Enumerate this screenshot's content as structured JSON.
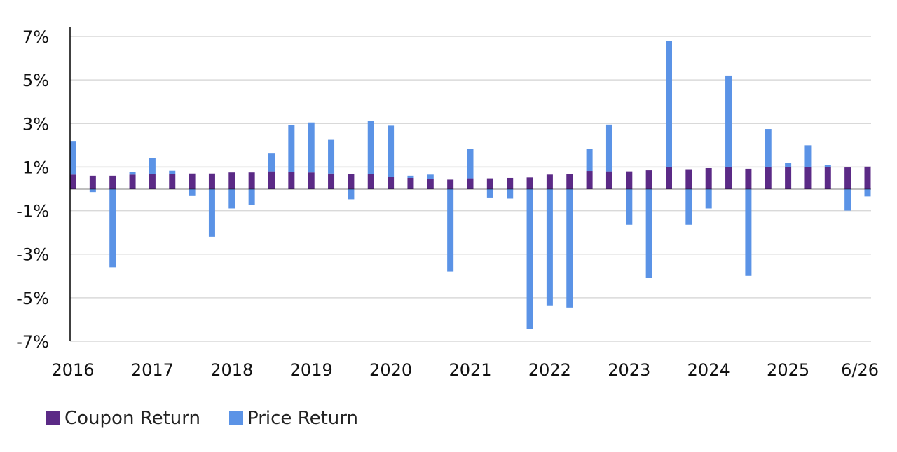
{
  "chart_data": {
    "type": "bar",
    "stacked": true,
    "title": "",
    "xlabel": "",
    "ylabel": "",
    "ylim": [
      -7,
      7
    ],
    "y_ticks": [
      "7%",
      "5%",
      "3%",
      "1%",
      "-1%",
      "-3%",
      "-5%",
      "-7%"
    ],
    "y_tick_values": [
      7,
      5,
      3,
      1,
      -1,
      -3,
      -5,
      -7
    ],
    "x_tick_labels": [
      "2016",
      "2017",
      "2018",
      "2019",
      "2020",
      "2021",
      "2022",
      "2023",
      "2024",
      "2025",
      "6/26"
    ],
    "x_tick_positions": [
      0,
      4,
      8,
      12,
      16,
      20,
      24,
      28,
      32,
      36,
      40
    ],
    "grid": true,
    "legend_position": "bottom-left",
    "colors": {
      "coupon": "#5b2a86",
      "price": "#5b93e6",
      "grid": "#d9d9d9",
      "axis": "#000000"
    },
    "series": [
      {
        "name": "Coupon Return",
        "values": [
          0.65,
          0.6,
          0.6,
          0.65,
          0.68,
          0.68,
          0.7,
          0.7,
          0.75,
          0.75,
          0.8,
          0.78,
          0.75,
          0.7,
          0.68,
          0.68,
          0.55,
          0.5,
          0.45,
          0.42,
          0.48,
          0.48,
          0.5,
          0.52,
          0.65,
          0.68,
          0.82,
          0.8,
          0.8,
          0.85,
          1.0,
          0.9,
          0.95,
          1.0,
          0.92,
          1.0,
          1.0,
          1.0,
          1.0,
          0.98,
          1.02
        ]
      },
      {
        "name": "Price Return",
        "values": [
          1.55,
          -0.15,
          -3.6,
          0.13,
          0.75,
          0.15,
          -0.3,
          -2.2,
          -0.9,
          -0.75,
          0.82,
          2.15,
          2.3,
          1.55,
          -0.48,
          2.45,
          2.35,
          0.1,
          0.2,
          -3.8,
          1.35,
          -0.4,
          -0.45,
          -6.45,
          -5.35,
          -5.45,
          1.0,
          2.15,
          -1.65,
          -4.1,
          5.8,
          -1.65,
          -0.9,
          4.2,
          -4.0,
          1.75,
          0.2,
          1.0,
          0.08,
          -1.0,
          -0.35
        ]
      }
    ]
  }
}
